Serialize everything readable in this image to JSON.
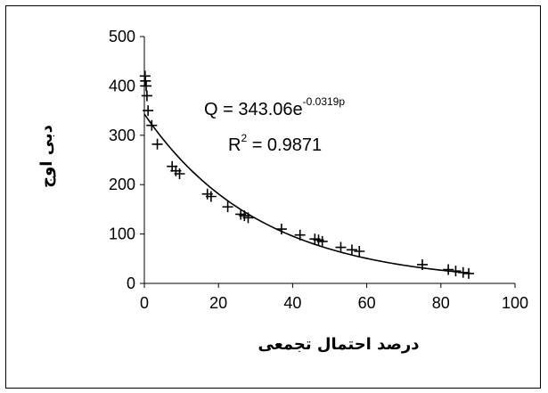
{
  "chart_data": {
    "type": "scatter",
    "xlabel": "درصد احتمال تجمعی",
    "ylabel": "دبی اوج",
    "xlim": [
      0,
      100
    ],
    "ylim": [
      0,
      500
    ],
    "x_ticks": [
      "0",
      "20",
      "40",
      "60",
      "80",
      "100"
    ],
    "y_ticks": [
      "0",
      "100",
      "200",
      "300",
      "400",
      "500"
    ],
    "grid": false,
    "legend": "none",
    "series": [
      {
        "marker": "plus",
        "color": "#000000",
        "points": [
          {
            "x": 0.2,
            "y": 420
          },
          {
            "x": 0.3,
            "y": 410
          },
          {
            "x": 0.5,
            "y": 400
          },
          {
            "x": 0.7,
            "y": 380
          },
          {
            "x": 1.0,
            "y": 350
          },
          {
            "x": 2.0,
            "y": 320
          },
          {
            "x": 3.5,
            "y": 282
          },
          {
            "x": 7.5,
            "y": 237
          },
          {
            "x": 8.5,
            "y": 228
          },
          {
            "x": 9.5,
            "y": 222
          },
          {
            "x": 17.0,
            "y": 181
          },
          {
            "x": 18.0,
            "y": 176
          },
          {
            "x": 22.5,
            "y": 155
          },
          {
            "x": 26.0,
            "y": 140
          },
          {
            "x": 27.0,
            "y": 137
          },
          {
            "x": 28.0,
            "y": 133
          },
          {
            "x": 37.0,
            "y": 110
          },
          {
            "x": 42.0,
            "y": 98
          },
          {
            "x": 46.0,
            "y": 90
          },
          {
            "x": 47.0,
            "y": 88
          },
          {
            "x": 48.0,
            "y": 85
          },
          {
            "x": 53.0,
            "y": 73
          },
          {
            "x": 56.0,
            "y": 68
          },
          {
            "x": 58.0,
            "y": 65
          },
          {
            "x": 75.0,
            "y": 38
          },
          {
            "x": 82.0,
            "y": 28
          },
          {
            "x": 84.0,
            "y": 25
          },
          {
            "x": 86.0,
            "y": 22
          },
          {
            "x": 87.5,
            "y": 20
          }
        ]
      }
    ],
    "trendline": {
      "type": "exponential",
      "a": 343.06,
      "b": -0.0319,
      "x_range": [
        0,
        88
      ],
      "color": "#000000"
    },
    "annotations": {
      "equation_prefix": "Q = ",
      "equation_coef": "343.06e",
      "equation_exp": "-0.0319p",
      "r2_label": "R",
      "r2_sup": "2",
      "r2_value": " = 0.9871"
    }
  }
}
